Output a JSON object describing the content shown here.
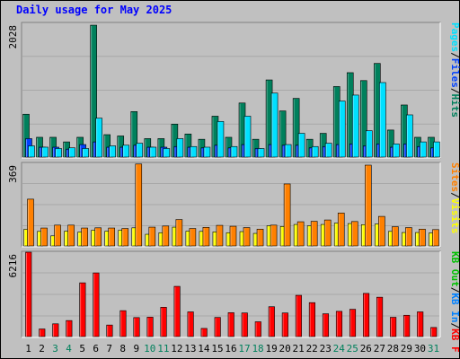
{
  "title": "Daily usage for May 2025",
  "colors": {
    "background": "#c0c0c0",
    "hits": "#00805c",
    "files": "#0040ff",
    "pages": "#00e0ff",
    "visits": "#ffff00",
    "sites": "#ff8000",
    "kb_f": "#ff0000",
    "kb_in": "#0080ff",
    "kb_out": "#00c000",
    "weekend_tick": "#00805c",
    "separator": "#000000"
  },
  "chart_data": [
    {
      "type": "bar",
      "panel": "top",
      "ymax_label": "2028",
      "ylim": [
        0,
        2028
      ],
      "categories": [
        "1",
        "2",
        "3",
        "4",
        "5",
        "6",
        "7",
        "8",
        "9",
        "10",
        "11",
        "12",
        "13",
        "14",
        "15",
        "16",
        "17",
        "18",
        "19",
        "20",
        "21",
        "22",
        "23",
        "24",
        "25",
        "26",
        "27",
        "28",
        "29",
        "30",
        "31"
      ],
      "legend": [
        {
          "label": "Hits",
          "color": "#00805c"
        },
        {
          "label": "/",
          "color": "#000000"
        },
        {
          "label": "Files",
          "color": "#0040ff"
        },
        {
          "label": "/",
          "color": "#000000"
        },
        {
          "label": "Pages",
          "color": "#00e0ff"
        }
      ],
      "series": [
        {
          "name": "Hits",
          "color": "#00805c",
          "values": [
            650,
            300,
            300,
            230,
            300,
            2000,
            340,
            320,
            690,
            280,
            280,
            500,
            350,
            270,
            620,
            300,
            820,
            270,
            1170,
            700,
            890,
            270,
            360,
            1070,
            1280,
            1160,
            1420,
            410,
            790,
            300,
            300
          ]
        },
        {
          "name": "Files",
          "color": "#0040ff",
          "values": [
            280,
            150,
            150,
            120,
            190,
            230,
            150,
            150,
            180,
            150,
            150,
            160,
            150,
            140,
            180,
            140,
            190,
            130,
            190,
            180,
            180,
            140,
            160,
            190,
            200,
            170,
            200,
            150,
            200,
            160,
            140
          ]
        },
        {
          "name": "Pages",
          "color": "#00e0ff",
          "values": [
            170,
            150,
            130,
            140,
            130,
            590,
            170,
            180,
            210,
            150,
            130,
            280,
            160,
            150,
            540,
            160,
            620,
            130,
            970,
            190,
            360,
            160,
            210,
            850,
            940,
            400,
            1130,
            200,
            640,
            230,
            230
          ]
        }
      ]
    },
    {
      "type": "bar",
      "panel": "middle",
      "ymax_label": "369",
      "ylim": [
        0,
        369
      ],
      "categories": [
        "1",
        "2",
        "3",
        "4",
        "5",
        "6",
        "7",
        "8",
        "9",
        "10",
        "11",
        "12",
        "13",
        "14",
        "15",
        "16",
        "17",
        "18",
        "19",
        "20",
        "21",
        "22",
        "23",
        "24",
        "25",
        "26",
        "27",
        "28",
        "29",
        "30",
        "31"
      ],
      "legend": [
        {
          "label": "Visits",
          "color": "#ffff00"
        },
        {
          "label": "/",
          "color": "#000000"
        },
        {
          "label": "Sites",
          "color": "#ff8000"
        }
      ],
      "series": [
        {
          "name": "Visits",
          "color": "#ffff00",
          "values": [
            74,
            65,
            45,
            66,
            62,
            70,
            66,
            70,
            81,
            52,
            59,
            84,
            66,
            65,
            63,
            59,
            64,
            56,
            90,
            87,
            96,
            90,
            96,
            102,
            100,
            95,
            98,
            65,
            60,
            60,
            58
          ]
        },
        {
          "name": "Sites",
          "color": "#ff8000",
          "values": [
            209,
            80,
            93,
            93,
            80,
            81,
            80,
            78,
            366,
            84,
            89,
            118,
            78,
            83,
            92,
            88,
            82,
            75,
            93,
            277,
            108,
            110,
            116,
            147,
            109,
            361,
            132,
            86,
            82,
            75,
            73
          ]
        }
      ]
    },
    {
      "type": "bar",
      "panel": "bottom",
      "ymax_label": "6216",
      "ylim": [
        0,
        6216
      ],
      "categories": [
        "1",
        "2",
        "3",
        "4",
        "5",
        "6",
        "7",
        "8",
        "9",
        "10",
        "11",
        "12",
        "13",
        "14",
        "15",
        "16",
        "17",
        "18",
        "19",
        "20",
        "21",
        "22",
        "23",
        "24",
        "25",
        "26",
        "27",
        "28",
        "29",
        "30",
        "31"
      ],
      "legend": [
        {
          "label": "KB F",
          "color": "#ff0000"
        },
        {
          "label": "/",
          "color": "#000000"
        },
        {
          "label": "KB In",
          "color": "#0080ff"
        },
        {
          "label": "/",
          "color": "#000000"
        },
        {
          "label": "KB Out",
          "color": "#00c000"
        }
      ],
      "series": [
        {
          "name": "KB F",
          "color": "#ff0000",
          "values": [
            6216,
            560,
            940,
            1180,
            3960,
            4690,
            850,
            1910,
            1400,
            1430,
            2160,
            3700,
            1820,
            600,
            1410,
            1760,
            1740,
            1090,
            2200,
            1740,
            3040,
            2500,
            1680,
            1860,
            2010,
            3180,
            2900,
            1420,
            1570,
            1820,
            670
          ]
        }
      ]
    }
  ],
  "x_ticks": [
    {
      "label": "1",
      "weekend": false
    },
    {
      "label": "2",
      "weekend": false
    },
    {
      "label": "3",
      "weekend": true
    },
    {
      "label": "4",
      "weekend": true
    },
    {
      "label": "5",
      "weekend": false
    },
    {
      "label": "6",
      "weekend": false
    },
    {
      "label": "7",
      "weekend": false
    },
    {
      "label": "8",
      "weekend": false
    },
    {
      "label": "9",
      "weekend": false
    },
    {
      "label": "10",
      "weekend": true
    },
    {
      "label": "11",
      "weekend": true
    },
    {
      "label": "12",
      "weekend": false
    },
    {
      "label": "13",
      "weekend": false
    },
    {
      "label": "14",
      "weekend": false
    },
    {
      "label": "15",
      "weekend": false
    },
    {
      "label": "16",
      "weekend": false
    },
    {
      "label": "17",
      "weekend": true
    },
    {
      "label": "18",
      "weekend": true
    },
    {
      "label": "19",
      "weekend": false
    },
    {
      "label": "20",
      "weekend": false
    },
    {
      "label": "21",
      "weekend": false
    },
    {
      "label": "22",
      "weekend": false
    },
    {
      "label": "23",
      "weekend": false
    },
    {
      "label": "24",
      "weekend": true
    },
    {
      "label": "25",
      "weekend": true
    },
    {
      "label": "26",
      "weekend": false
    },
    {
      "label": "27",
      "weekend": false
    },
    {
      "label": "28",
      "weekend": false
    },
    {
      "label": "29",
      "weekend": false
    },
    {
      "label": "30",
      "weekend": false
    },
    {
      "label": "31",
      "weekend": true
    }
  ]
}
